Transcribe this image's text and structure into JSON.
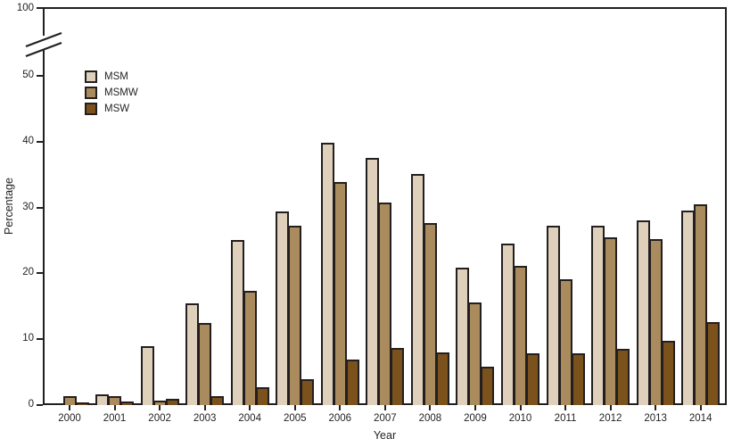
{
  "chart_data": {
    "type": "bar",
    "title": "",
    "xlabel": "Year",
    "ylabel": "Percentage",
    "categories": [
      "2000",
      "2001",
      "2002",
      "2003",
      "2004",
      "2005",
      "2006",
      "2007",
      "2008",
      "2009",
      "2010",
      "2011",
      "2012",
      "2013",
      "2014"
    ],
    "series": [
      {
        "name": "MSM",
        "color": "#ded0ba",
        "values": [
          0.3,
          1.6,
          9.0,
          15.4,
          25.1,
          29.4,
          39.9,
          37.5,
          35.1,
          20.8,
          24.5,
          27.2,
          27.3,
          28.1,
          29.6
        ]
      },
      {
        "name": "MSMW",
        "color": "#a98b5e",
        "values": [
          1.3,
          1.4,
          0.7,
          12.4,
          17.3,
          27.2,
          33.9,
          30.8,
          27.7,
          15.6,
          21.1,
          19.1,
          25.5,
          25.2,
          30.5
        ]
      },
      {
        "name": "MSW",
        "color": "#7b521b",
        "values": [
          0.4,
          0.5,
          0.9,
          1.4,
          2.7,
          3.9,
          6.9,
          8.7,
          8.0,
          5.8,
          7.8,
          7.8,
          8.5,
          9.7,
          12.6
        ]
      }
    ],
    "y_axis": {
      "ticks": [
        "0",
        "10",
        "20",
        "30",
        "40",
        "50"
      ],
      "break_label": "100",
      "has_axis_break": true
    },
    "ylim": [
      0,
      50
    ],
    "grid": false,
    "legend_position": "top-left",
    "axis_color": "#231f20",
    "background_color": "#ffffff"
  }
}
